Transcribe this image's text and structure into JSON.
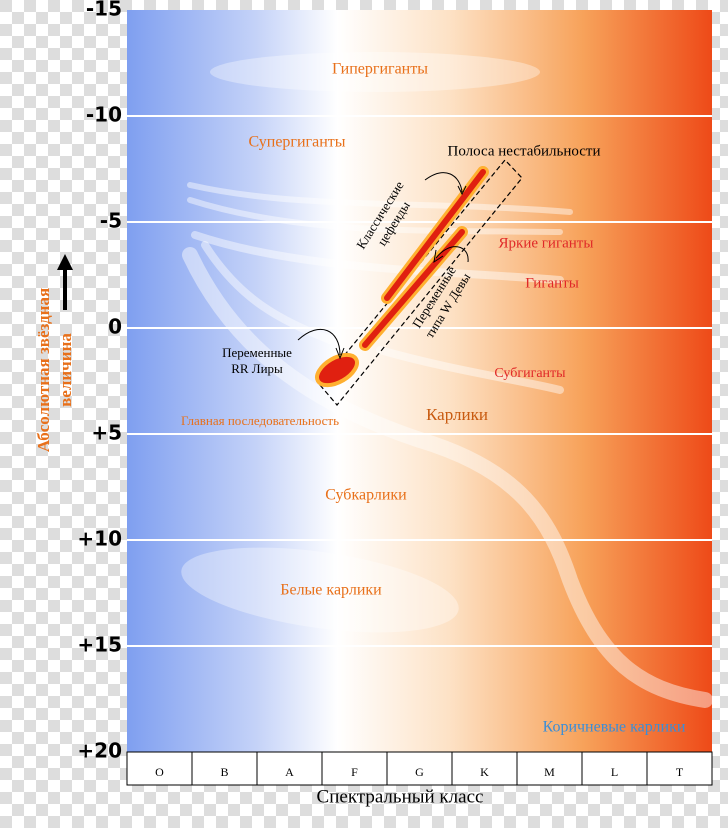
{
  "y_axis": {
    "label": [
      "Абсолютная звёздная",
      "величина"
    ],
    "ticks": [
      "-15",
      "-10",
      "-5",
      "0",
      "+5",
      "+10",
      "+15",
      "+20"
    ]
  },
  "x_axis": {
    "label": "Спектральный класс",
    "classes": [
      "O",
      "B",
      "A",
      "F",
      "G",
      "K",
      "M",
      "L",
      "T"
    ]
  },
  "regions": {
    "hypergiants": "Гипергиганты",
    "supergiants": "Супергиганты",
    "bright_giants": "Яркие гиганты",
    "giants": "Гиганты",
    "subgiants": "Субгиганты",
    "main_sequence": "Главная последовательность",
    "dwarfs": "Карлики",
    "subdwarfs": "Субкарлики",
    "white_dwarfs": "Белые карлики",
    "brown_dwarfs": "Коричневые карлики"
  },
  "annotations": {
    "instability_strip": "Полоса нестабильности",
    "cepheids": [
      "Классические",
      "цефеиды"
    ],
    "w_virginis": [
      "Переменные",
      "типа W Девы"
    ],
    "rr_lyrae": [
      "Переменные",
      "RR Лиры"
    ]
  }
}
